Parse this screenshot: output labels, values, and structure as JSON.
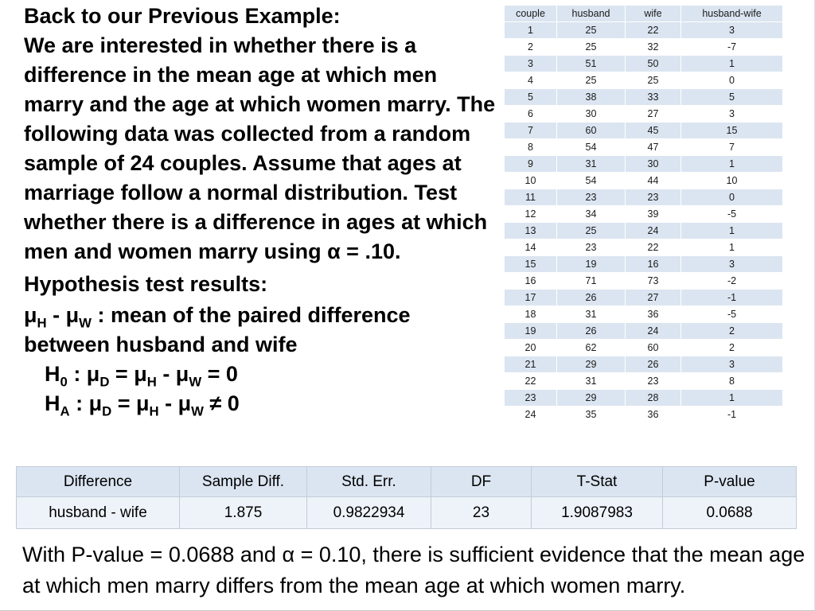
{
  "intro": {
    "heading": "Back to our Previous Example",
    "heading_colon": ":",
    "body": "We are interested in whether there is a difference in the mean age at which men marry and the age at which women marry. The following data was collected from a random sample of 24 couples. Assume that ages at marriage follow a normal distribution. Test whether there is a difference in ages at which men and women marry using α = .10."
  },
  "hypothesis": {
    "heading": "Hypothesis test results:",
    "definition": {
      "mu1": "μ",
      "sub1": "H",
      "mid": " - ",
      "mu2": "μ",
      "sub2": "W",
      "rest": " : mean of the paired difference between husband and wife"
    },
    "h0": {
      "t1": "H",
      "s1": "0",
      "t2": " : μ",
      "s2": "D",
      "t3": " = μ",
      "s3": "H",
      "t4": " - μ",
      "s4": "W",
      "t5": " = 0"
    },
    "ha": {
      "t1": "H",
      "s1": "A",
      "t2": " : μ",
      "s2": "D",
      "t3": " = μ",
      "s3": "H",
      "t4": " - μ",
      "s4": "W",
      "t5": " ≠ 0"
    }
  },
  "couples_table": {
    "columns": [
      "couple",
      "husband",
      "wife",
      "husband-wife"
    ],
    "rows": [
      [
        1,
        25,
        22,
        3
      ],
      [
        2,
        25,
        32,
        -7
      ],
      [
        3,
        51,
        50,
        1
      ],
      [
        4,
        25,
        25,
        0
      ],
      [
        5,
        38,
        33,
        5
      ],
      [
        6,
        30,
        27,
        3
      ],
      [
        7,
        60,
        45,
        15
      ],
      [
        8,
        54,
        47,
        7
      ],
      [
        9,
        31,
        30,
        1
      ],
      [
        10,
        54,
        44,
        10
      ],
      [
        11,
        23,
        23,
        0
      ],
      [
        12,
        34,
        39,
        -5
      ],
      [
        13,
        25,
        24,
        1
      ],
      [
        14,
        23,
        22,
        1
      ],
      [
        15,
        19,
        16,
        3
      ],
      [
        16,
        71,
        73,
        -2
      ],
      [
        17,
        26,
        27,
        -1
      ],
      [
        18,
        31,
        36,
        -5
      ],
      [
        19,
        26,
        24,
        2
      ],
      [
        20,
        62,
        60,
        2
      ],
      [
        21,
        29,
        26,
        3
      ],
      [
        22,
        31,
        23,
        8
      ],
      [
        23,
        29,
        28,
        1
      ],
      [
        24,
        35,
        36,
        -1
      ]
    ]
  },
  "summary_table": {
    "columns": [
      "Difference",
      "Sample Diff.",
      "Std. Err.",
      "DF",
      "T-Stat",
      "P-value"
    ],
    "row": [
      "husband - wife",
      "1.875",
      "0.9822934",
      "23",
      "1.9087983",
      "0.0688"
    ]
  },
  "conclusion": "With P-value = 0.0688 and α = 0.10, there is sufficient evidence that the mean age at which men marry differs from the mean age at which women marry.",
  "colors": {
    "band_blue": "#dbe5f1",
    "summary_body": "#eef3fa"
  }
}
